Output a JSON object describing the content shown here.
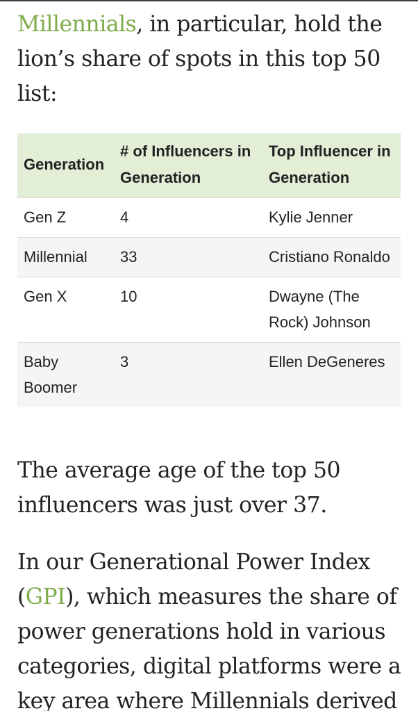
{
  "intro": {
    "link_text": "Millennials",
    "text_after_link": ", in particular, hold the lion’s share of spots in this top 50 list:"
  },
  "table": {
    "headers": [
      "Generation",
      "# of Influencers in Generation",
      "Top Influencer in Generation"
    ],
    "rows": [
      {
        "generation": "Gen Z",
        "count": "4",
        "top": "Kylie Jenner"
      },
      {
        "generation": "Millennial",
        "count": "33",
        "top": "Cristiano Ronaldo"
      },
      {
        "generation": "Gen X",
        "count": "10",
        "top": "Dwayne (The Rock) Johnson"
      },
      {
        "generation": "Baby Boomer",
        "count": "3",
        "top": "Ellen DeGeneres"
      }
    ]
  },
  "average_age_text": "The average age of the top 50 influencers was just over 37.",
  "gpi_paragraph": {
    "text_before_link": "In our Generational Power Index (",
    "link_text": "GPI",
    "text_after_link": "), which measures the share of power generations hold in various categories, digital platforms were a key area where Millennials derived"
  },
  "colors": {
    "link": "#7fac4b",
    "header_bg": "#e2eed6",
    "alt_row_bg": "#f5f5f5"
  }
}
